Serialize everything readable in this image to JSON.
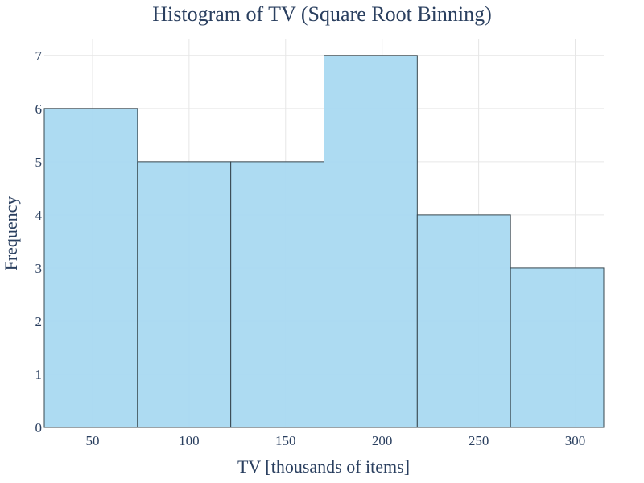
{
  "chart_data": {
    "type": "bar",
    "title": "Histogram of TV (Square Root Binning)",
    "xlabel": "TV [thousands of items]",
    "ylabel": "Frequency",
    "bins": [
      {
        "start": 25.0,
        "end": 73.3,
        "count": 6
      },
      {
        "start": 73.3,
        "end": 121.6,
        "count": 5
      },
      {
        "start": 121.6,
        "end": 169.9,
        "count": 5
      },
      {
        "start": 169.9,
        "end": 218.2,
        "count": 7
      },
      {
        "start": 218.2,
        "end": 266.5,
        "count": 4
      },
      {
        "start": 266.5,
        "end": 314.8,
        "count": 3
      }
    ],
    "xlim": [
      25,
      314.8
    ],
    "ylim": [
      0,
      7.3
    ],
    "xticks": [
      50,
      100,
      150,
      200,
      250,
      300
    ],
    "yticks": [
      0,
      1,
      2,
      3,
      4,
      5,
      6,
      7
    ],
    "grid": true,
    "bar_color": "#a9d9f1",
    "edge_color": "#37474f"
  }
}
